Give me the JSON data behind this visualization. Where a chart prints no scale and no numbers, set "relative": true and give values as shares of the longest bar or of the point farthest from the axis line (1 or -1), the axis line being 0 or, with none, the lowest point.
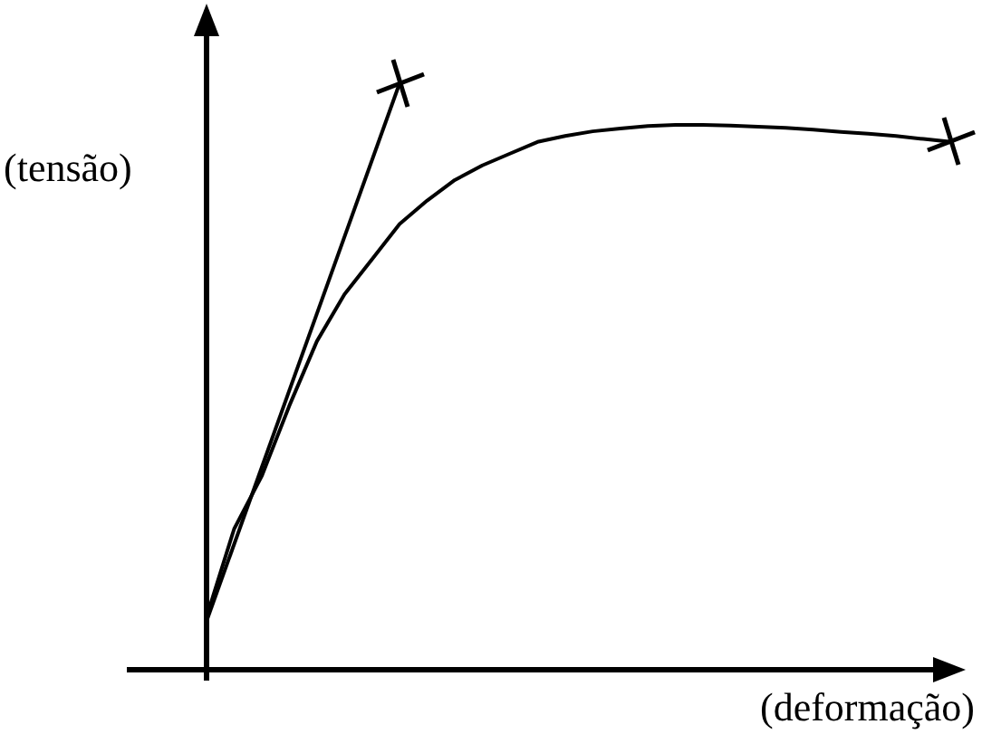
{
  "chart_data": {
    "type": "line",
    "relative": true,
    "xlabel": "(deformação)",
    "ylabel": "(tensão)",
    "line_style": "solid",
    "legend": false,
    "categories": [
      null,
      null,
      null,
      null,
      null,
      null,
      null,
      null,
      null,
      null,
      null,
      null,
      null,
      null,
      null,
      null,
      null,
      null,
      null,
      null,
      null,
      null,
      null,
      null,
      null,
      null,
      null,
      null
    ],
    "series": [
      {
        "color": "#000000",
        "values": [
          0.083,
          null,
          null,
          null,
          null,
          null,
          null,
          1,
          null,
          null,
          null,
          null,
          null,
          null,
          null,
          null,
          null,
          null,
          null,
          null,
          null,
          null,
          null,
          null,
          null,
          null,
          null,
          null
        ]
      },
      {
        "color": "#000000",
        "values": [
          0.09,
          0.24,
          0.33,
          0.45,
          0.56,
          0.64,
          0.7,
          0.76,
          0.8,
          0.835,
          0.86,
          0.88,
          0.9,
          0.91,
          0.918,
          0.923,
          0.927,
          0.929,
          0.929,
          0.928,
          0.926,
          0.924,
          0.921,
          0.917,
          0.914,
          0.91,
          0.905,
          0.9
        ]
      }
    ]
  }
}
